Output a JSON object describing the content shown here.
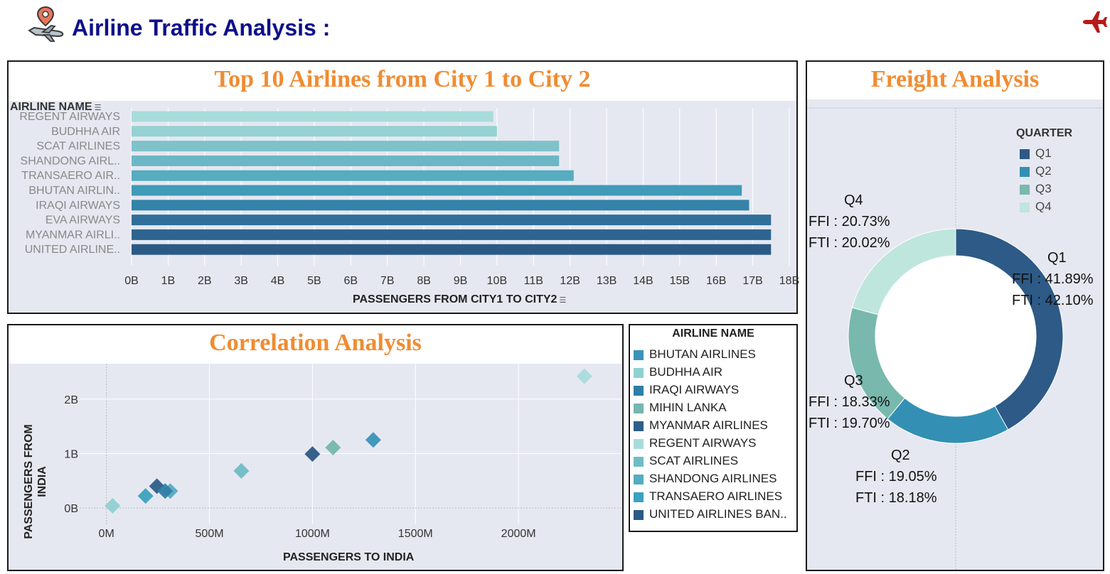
{
  "header": {
    "title": "Airline Traffic Analysis :"
  },
  "colors": {
    "title": "#0d0f8a",
    "panel_title": "#f08c32",
    "plot_bg": "#e6e8f1",
    "plane_icon": "#b81a1a"
  },
  "bar_panel": {
    "title": "Top 10 Airlines from City 1 to City 2",
    "row_header": "AIRLINE NAME",
    "x_axis_label": "PASSENGERS FROM CITY1 TO CITY2"
  },
  "scatter_panel": {
    "title": "Correlation Analysis",
    "x_axis_label": "PASSENGERS TO INDIA",
    "y_axis_label_line1": "PASSENGERS FROM",
    "y_axis_label_line2": "INDIA"
  },
  "legend_panel": {
    "title": "AIRLINE NAME",
    "items": [
      {
        "label": "BHUTAN AIRLINES",
        "color": "#3a94b8"
      },
      {
        "label": "BUDHHA AIR",
        "color": "#8fd0d0"
      },
      {
        "label": "IRAQI AIRWAYS",
        "color": "#2e7ea6"
      },
      {
        "label": "MIHIN LANKA",
        "color": "#75b6ad"
      },
      {
        "label": "MYANMAR AIRLINES",
        "color": "#2e5e8a"
      },
      {
        "label": "REGENT AIRWAYS",
        "color": "#a8dcdc"
      },
      {
        "label": "SCAT AIRLINES",
        "color": "#6fbdc4"
      },
      {
        "label": "SHANDONG AIRLINES",
        "color": "#56acc0"
      },
      {
        "label": "TRANSAERO AIRLINES",
        "color": "#3ca2be"
      },
      {
        "label": "UNITED AIRLINES BAN..",
        "color": "#2c5a86"
      }
    ]
  },
  "freight_panel": {
    "title": "Freight Analysis",
    "legend_title": "QUARTER",
    "legend": [
      {
        "label": "Q1",
        "color": "#2d5a86"
      },
      {
        "label": "Q2",
        "color": "#3390b4"
      },
      {
        "label": "Q3",
        "color": "#78b8ad"
      },
      {
        "label": "Q4",
        "color": "#bfe6dd"
      }
    ],
    "labels": {
      "q1": {
        "name": "Q1",
        "ffi": "FFI : 41.89%",
        "fti": "FTI : 42.10%"
      },
      "q2": {
        "name": "Q2",
        "ffi": "FFI : 19.05%",
        "fti": "FTI : 18.18%"
      },
      "q3": {
        "name": "Q3",
        "ffi": "FFI : 18.33%",
        "fti": "FTI : 19.70%"
      },
      "q4": {
        "name": "Q4",
        "ffi": "FFI : 20.73%",
        "fti": "FTI : 20.02%"
      }
    }
  },
  "chart_data": [
    {
      "type": "bar",
      "orientation": "horizontal",
      "title": "Top 10 Airlines from City 1 to City 2",
      "xlabel": "PASSENGERS FROM CITY1 TO CITY2",
      "ylabel": "AIRLINE NAME",
      "categories": [
        "REGENT AIRWAYS",
        "BUDHHA AIR",
        "SCAT AIRLINES",
        "SHANDONG AIRL..",
        "TRANSAERO AIR..",
        "BHUTAN AIRLIN..",
        "IRAQI AIRWAYS",
        "EVA AIRWAYS",
        "MYANMAR AIRLI..",
        "UNITED AIRLINE.."
      ],
      "values": [
        9.9,
        10.0,
        11.7,
        11.7,
        12.1,
        16.7,
        16.9,
        17.5,
        17.5,
        17.5
      ],
      "value_unit": "B",
      "colors": [
        "#a8dcdc",
        "#95d2d2",
        "#7fc2ca",
        "#6cb7c5",
        "#56acc0",
        "#3f9bb8",
        "#3583a9",
        "#2f6f9a",
        "#2d6590",
        "#2c5a86"
      ],
      "xlim": [
        0,
        18
      ],
      "xticks": [
        "0B",
        "1B",
        "2B",
        "3B",
        "4B",
        "5B",
        "6B",
        "7B",
        "8B",
        "9B",
        "10B",
        "11B",
        "12B",
        "13B",
        "14B",
        "15B",
        "16B",
        "17B",
        "18B"
      ],
      "grid": true
    },
    {
      "type": "scatter",
      "title": "Correlation Analysis",
      "xlabel": "PASSENGERS TO INDIA",
      "ylabel": "PASSENGERS FROM INDIA",
      "x_unit": "M",
      "y_unit": "B",
      "xlim": [
        -130,
        2500
      ],
      "ylim": [
        -0.3,
        2.65
      ],
      "xticks": [
        {
          "v": 0,
          "label": "0M"
        },
        {
          "v": 500,
          "label": "500M"
        },
        {
          "v": 1000,
          "label": "1000M"
        },
        {
          "v": 1500,
          "label": "1500M"
        },
        {
          "v": 2000,
          "label": "2000M"
        }
      ],
      "yticks": [
        {
          "v": 0,
          "label": "0B"
        },
        {
          "v": 1,
          "label": "1B"
        },
        {
          "v": 2,
          "label": "2B"
        }
      ],
      "points": [
        {
          "airline": "REGENT AIRWAYS",
          "x": 2320,
          "y": 2.42,
          "color": "#a8dcdc"
        },
        {
          "airline": "BHUTAN AIRLINES",
          "x": 1295,
          "y": 1.25,
          "color": "#3a94b8"
        },
        {
          "airline": "MIHIN LANKA",
          "x": 1100,
          "y": 1.11,
          "color": "#75b6ad"
        },
        {
          "airline": "UNITED AIRLINES BAN..",
          "x": 1000,
          "y": 0.99,
          "color": "#2c5a86"
        },
        {
          "airline": "SCAT AIRLINES",
          "x": 655,
          "y": 0.68,
          "color": "#6fbdc4"
        },
        {
          "airline": "MYANMAR AIRLINES",
          "x": 245,
          "y": 0.4,
          "color": "#2e5e8a"
        },
        {
          "airline": "SHANDONG AIRLINES",
          "x": 310,
          "y": 0.31,
          "color": "#56acc0"
        },
        {
          "airline": "IRAQI AIRWAYS",
          "x": 285,
          "y": 0.31,
          "color": "#2e7ea6"
        },
        {
          "airline": "TRANSAERO AIRLINES",
          "x": 190,
          "y": 0.22,
          "color": "#3ca2be"
        },
        {
          "airline": "BUDHHA AIR",
          "x": 30,
          "y": 0.04,
          "color": "#8fd0d0"
        }
      ],
      "grid": true
    },
    {
      "type": "pie",
      "subtype": "donut",
      "title": "Freight Analysis",
      "legend_title": "QUARTER",
      "legend_position": "top-right",
      "categories": [
        "Q1",
        "Q2",
        "Q3",
        "Q4"
      ],
      "values": [
        41.89,
        19.05,
        18.33,
        20.73
      ],
      "fti_values": [
        42.1,
        18.18,
        19.7,
        20.02
      ],
      "colors": [
        "#2d5a86",
        "#3390b4",
        "#78b8ad",
        "#bfe6dd"
      ]
    }
  ]
}
